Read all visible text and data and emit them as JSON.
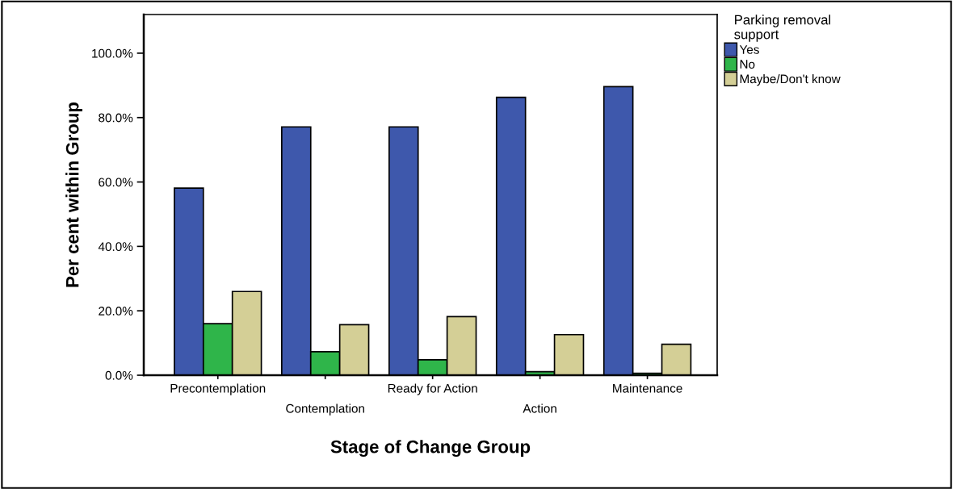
{
  "chart_data": {
    "type": "bar",
    "xlabel": "Stage of Change Group",
    "ylabel": "Per cent within Group",
    "legend_title": "Parking removal support",
    "categories": [
      "Precontemplation",
      "Contemplation",
      "Ready for Action",
      "Action",
      "Maintenance"
    ],
    "series": [
      {
        "name": "Yes",
        "color": "#3e58ac",
        "values": [
          58.1,
          77.1,
          77.1,
          86.3,
          89.6
        ]
      },
      {
        "name": "No",
        "color": "#2fb54a",
        "values": [
          16.0,
          7.3,
          4.8,
          1.1,
          0.6
        ]
      },
      {
        "name": "Maybe/Don't know",
        "color": "#d4cf96",
        "values": [
          26.0,
          15.7,
          18.2,
          12.6,
          9.6
        ]
      }
    ],
    "ylim": [
      0,
      112
    ],
    "yticks": [
      {
        "value": 0,
        "label": "0.0%"
      },
      {
        "value": 20,
        "label": "20.0%"
      },
      {
        "value": 40,
        "label": "40.0%"
      },
      {
        "value": 60,
        "label": "60.0%"
      },
      {
        "value": 80,
        "label": "80.0%"
      },
      {
        "value": 100,
        "label": "100.0%"
      }
    ],
    "grid": false,
    "legend": "right"
  }
}
